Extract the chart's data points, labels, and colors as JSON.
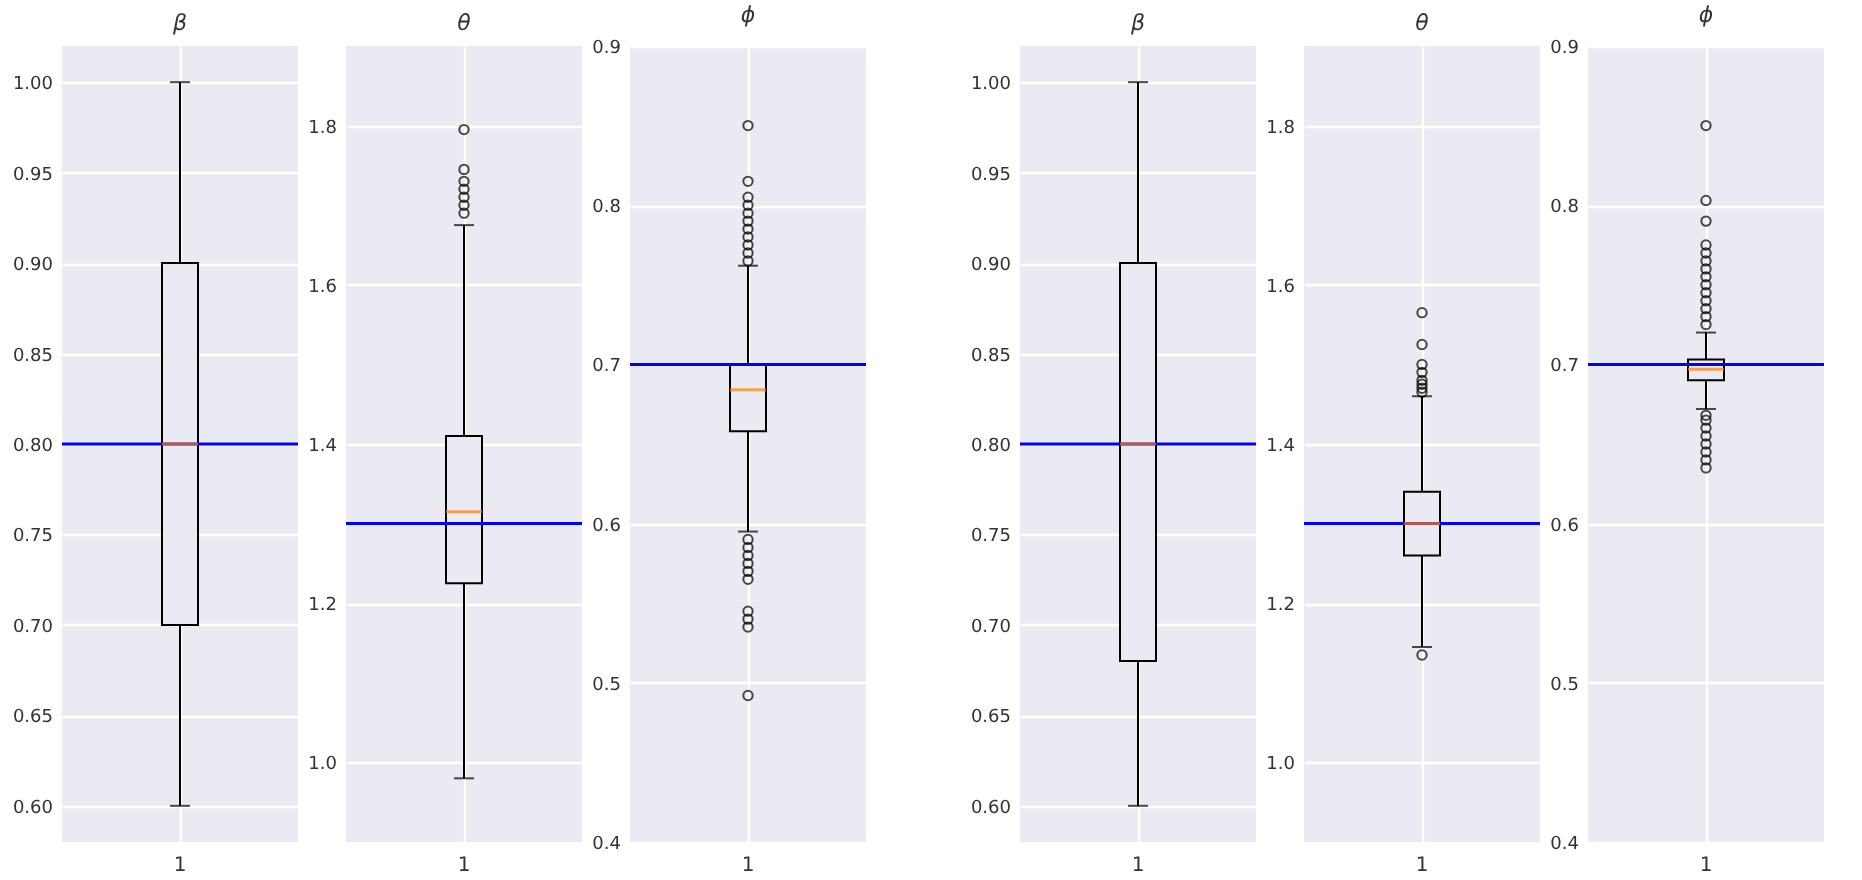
{
  "chart_data": [
    {
      "type": "box",
      "title": "β",
      "categories": [
        "1"
      ],
      "boxes": [
        {
          "low": 0.6,
          "q1": 0.7,
          "median": 0.8,
          "q3": 0.9,
          "high": 1.0
        }
      ],
      "ylim": [
        0.58,
        1.02
      ],
      "yticks": [
        {
          "value": 0.6,
          "label": "0.60"
        },
        {
          "value": 0.65,
          "label": "0.65"
        },
        {
          "value": 0.7,
          "label": "0.70"
        },
        {
          "value": 0.75,
          "label": "0.75"
        },
        {
          "value": 0.8,
          "label": "0.80"
        },
        {
          "value": 0.85,
          "label": "0.85"
        },
        {
          "value": 0.9,
          "label": "0.90"
        },
        {
          "value": 0.95,
          "label": "0.95"
        },
        {
          "value": 1.0,
          "label": "1.00"
        }
      ],
      "ref_lines": [
        {
          "axis": "y",
          "value": 0.8,
          "color": "#0000ff"
        }
      ],
      "grid": true
    },
    {
      "type": "box",
      "title": "θ",
      "categories": [
        "1"
      ],
      "boxes": [
        {
          "low": 0.98,
          "q1": 1.225,
          "median": 1.315,
          "q3": 1.41,
          "high": 1.675,
          "outliers": [
            1.69,
            1.7,
            1.71,
            1.72,
            1.73,
            1.745,
            1.795
          ]
        }
      ],
      "ylim": [
        0.9,
        1.9
      ],
      "yticks": [
        {
          "value": 1.0,
          "label": "1.0"
        },
        {
          "value": 1.2,
          "label": "1.2"
        },
        {
          "value": 1.4,
          "label": "1.4"
        },
        {
          "value": 1.6,
          "label": "1.6"
        },
        {
          "value": 1.8,
          "label": "1.8"
        }
      ],
      "ref_lines": [
        {
          "axis": "y",
          "value": 1.3,
          "color": "#0000ff"
        }
      ],
      "grid": true
    },
    {
      "type": "box",
      "title": "ϕ",
      "categories": [
        "1"
      ],
      "boxes": [
        {
          "low": 0.595,
          "q1": 0.658,
          "median": 0.684,
          "q3": 0.7,
          "high": 0.762,
          "outliers": [
            0.765,
            0.77,
            0.775,
            0.78,
            0.785,
            0.79,
            0.795,
            0.8,
            0.805,
            0.815,
            0.85,
            0.59,
            0.585,
            0.58,
            0.575,
            0.57,
            0.565,
            0.545,
            0.54,
            0.535,
            0.492
          ]
        }
      ],
      "ylim": [
        0.4,
        0.9
      ],
      "yticks": [
        0.4,
        0.5,
        0.6,
        0.7,
        0.8,
        0.9
      ],
      "ref_lines": [
        {
          "axis": "y",
          "value": 0.7,
          "color": "#0000ff"
        }
      ],
      "grid": true
    },
    {
      "type": "box",
      "title": "β",
      "categories": [
        "1"
      ],
      "boxes": [
        {
          "low": 0.6,
          "q1": 0.68,
          "median": 0.8,
          "q3": 0.9,
          "high": 1.0
        }
      ],
      "ylim": [
        0.58,
        1.02
      ],
      "yticks": [
        {
          "value": 0.6,
          "label": "0.60"
        },
        {
          "value": 0.65,
          "label": "0.65"
        },
        {
          "value": 0.7,
          "label": "0.70"
        },
        {
          "value": 0.75,
          "label": "0.75"
        },
        {
          "value": 0.8,
          "label": "0.80"
        },
        {
          "value": 0.85,
          "label": "0.85"
        },
        {
          "value": 0.9,
          "label": "0.90"
        },
        {
          "value": 0.95,
          "label": "0.95"
        },
        {
          "value": 1.0,
          "label": "1.00"
        }
      ],
      "ref_lines": [
        {
          "axis": "y",
          "value": 0.8,
          "color": "#0000ff"
        }
      ],
      "grid": true
    },
    {
      "type": "box",
      "title": "θ",
      "categories": [
        "1"
      ],
      "boxes": [
        {
          "low": 1.145,
          "q1": 1.26,
          "median": 1.3,
          "q3": 1.34,
          "high": 1.46,
          "outliers": [
            1.465,
            1.47,
            1.475,
            1.48,
            1.49,
            1.5,
            1.525,
            1.565,
            1.135
          ]
        }
      ],
      "ylim": [
        0.9,
        1.9
      ],
      "yticks": [
        {
          "value": 1.0,
          "label": "1.0"
        },
        {
          "value": 1.2,
          "label": "1.2"
        },
        {
          "value": 1.4,
          "label": "1.4"
        },
        {
          "value": 1.6,
          "label": "1.6"
        },
        {
          "value": 1.8,
          "label": "1.8"
        }
      ],
      "ref_lines": [
        {
          "axis": "y",
          "value": 1.3,
          "color": "#0000ff"
        }
      ],
      "grid": true
    },
    {
      "type": "box",
      "title": "ϕ",
      "categories": [
        "1"
      ],
      "boxes": [
        {
          "low": 0.672,
          "q1": 0.69,
          "median": 0.697,
          "q3": 0.703,
          "high": 0.72,
          "outliers": [
            0.725,
            0.73,
            0.735,
            0.74,
            0.745,
            0.75,
            0.755,
            0.76,
            0.765,
            0.77,
            0.775,
            0.79,
            0.803,
            0.85,
            0.668,
            0.665,
            0.66,
            0.655,
            0.65,
            0.645,
            0.64,
            0.635
          ]
        }
      ],
      "ylim": [
        0.4,
        0.9
      ],
      "yticks": [
        0.4,
        0.5,
        0.6,
        0.7,
        0.8,
        0.9
      ],
      "ref_lines": [
        {
          "axis": "y",
          "value": 0.7,
          "color": "#0000ff"
        }
      ],
      "grid": true
    }
  ]
}
